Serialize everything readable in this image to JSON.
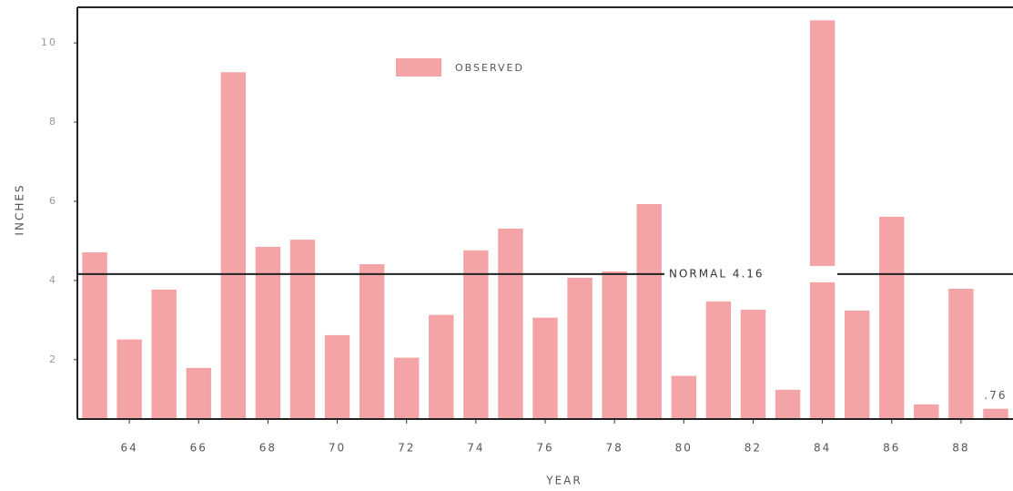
{
  "chart_data": {
    "type": "bar",
    "x_label": "YEAR",
    "y_label": "INCHES",
    "categories": [
      null,
      "64",
      null,
      "66",
      null,
      "68",
      null,
      "70",
      null,
      "72",
      null,
      "74",
      null,
      "76",
      null,
      "78",
      null,
      "80",
      null,
      "82",
      null,
      "84",
      null,
      "86",
      null,
      "88",
      null
    ],
    "series": [
      {
        "name": "OBSERVED",
        "color": "#f4a3a6",
        "values": [
          4.71,
          2.51,
          3.77,
          1.79,
          9.26,
          4.85,
          5.03,
          2.62,
          4.41,
          2.05,
          3.13,
          4.76,
          5.31,
          3.06,
          4.07,
          4.23,
          5.93,
          1.59,
          3.47,
          3.26,
          1.24,
          10.57,
          3.24,
          5.61,
          0.87,
          3.79,
          0.76
        ],
        "value_labels": [
          null,
          null,
          null,
          null,
          null,
          null,
          null,
          null,
          null,
          null,
          null,
          null,
          null,
          null,
          null,
          null,
          null,
          null,
          null,
          null,
          null,
          null,
          null,
          null,
          null,
          null,
          ".76"
        ]
      }
    ],
    "normal": {
      "value": 4.16,
      "label": "NORMAL  4.16"
    },
    "ylim": [
      0.5,
      10.9
    ],
    "yticks": [
      2,
      4,
      6,
      8,
      10
    ]
  }
}
